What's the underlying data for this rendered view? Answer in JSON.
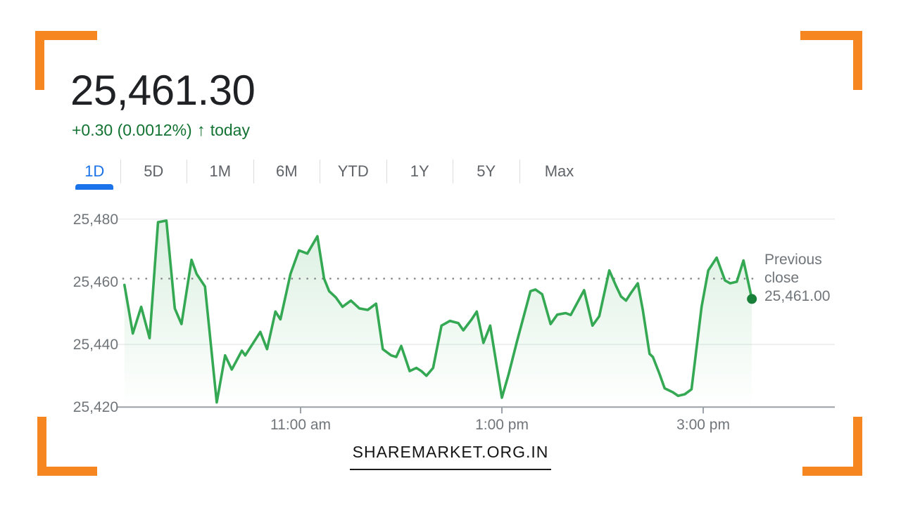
{
  "accent_color": "#f6861f",
  "header": {
    "price": "25,461.30",
    "change": "+0.30 (0.0012%)",
    "up_arrow": "↑",
    "change_suffix": "today",
    "change_color": "#137333",
    "price_color": "#202124"
  },
  "tabs": [
    {
      "label": "1D",
      "active": true
    },
    {
      "label": "5D",
      "active": false
    },
    {
      "label": "1M",
      "active": false
    },
    {
      "label": "6M",
      "active": false
    },
    {
      "label": "YTD",
      "active": false
    },
    {
      "label": "1Y",
      "active": false
    },
    {
      "label": "5Y",
      "active": false
    },
    {
      "label": "Max",
      "active": false
    }
  ],
  "active_tab_color": "#1a73e8",
  "watermark": "SHAREMARKET.ORG.IN",
  "chart_data": {
    "type": "line",
    "title": "",
    "xlabel": "",
    "ylabel": "",
    "session": {
      "open": "9:15 am",
      "close": "3:30 pm"
    },
    "x_unit": "minutes after 9:15 am",
    "ylim": [
      25420,
      25480
    ],
    "grid": true,
    "line_color": "#34a853",
    "dot_color": "#188038",
    "fill_color": "rgba(52,168,83,0.16)",
    "y_ticks": [
      {
        "label": "25,480",
        "value": 25480
      },
      {
        "label": "25,460",
        "value": 25460
      },
      {
        "label": "25,440",
        "value": 25440
      },
      {
        "label": "25,420",
        "value": 25420
      }
    ],
    "x_ticks": [
      {
        "label": "11:00 am",
        "minutes": 105
      },
      {
        "label": "1:00 pm",
        "minutes": 225
      },
      {
        "label": "3:00 pm",
        "minutes": 345
      }
    ],
    "previous_close": {
      "line1": "Previous",
      "line2": "close",
      "value_label": "25,461.00",
      "value": 25461.0
    },
    "last_price": 25461.3,
    "points": [
      [
        0,
        25459
      ],
      [
        5,
        25443.5
      ],
      [
        10,
        25452
      ],
      [
        15,
        25442
      ],
      [
        20,
        25479
      ],
      [
        25,
        25479.5
      ],
      [
        30,
        25451.5
      ],
      [
        34,
        25446.5
      ],
      [
        40,
        25467
      ],
      [
        43,
        25462.5
      ],
      [
        48,
        25458.5
      ],
      [
        55,
        25421.5
      ],
      [
        60,
        25436.5
      ],
      [
        64,
        25432
      ],
      [
        70,
        25438
      ],
      [
        72,
        25436.5
      ],
      [
        81,
        25444
      ],
      [
        85,
        25438.5
      ],
      [
        90,
        25450.5
      ],
      [
        93,
        25448
      ],
      [
        99,
        25462.5
      ],
      [
        104,
        25470
      ],
      [
        109,
        25469
      ],
      [
        115,
        25474.5
      ],
      [
        119,
        25461
      ],
      [
        122,
        25457
      ],
      [
        126,
        25455
      ],
      [
        130,
        25452
      ],
      [
        135,
        25454
      ],
      [
        140,
        25451.5
      ],
      [
        145,
        25451
      ],
      [
        150,
        25453
      ],
      [
        154,
        25438.5
      ],
      [
        159,
        25436.5
      ],
      [
        162,
        25436
      ],
      [
        165,
        25439.5
      ],
      [
        170,
        25431.5
      ],
      [
        174,
        25432.5
      ],
      [
        177,
        25431.5
      ],
      [
        180,
        25430
      ],
      [
        184,
        25432.5
      ],
      [
        189,
        25446
      ],
      [
        194,
        25447.5
      ],
      [
        199,
        25446.8
      ],
      [
        202,
        25444.5
      ],
      [
        207,
        25448
      ],
      [
        210,
        25450.5
      ],
      [
        214,
        25440.5
      ],
      [
        218,
        25446
      ],
      [
        225,
        25423
      ],
      [
        229,
        25430.5
      ],
      [
        234,
        25441
      ],
      [
        242,
        25457
      ],
      [
        245,
        25457.5
      ],
      [
        249,
        25456
      ],
      [
        254,
        25446.5
      ],
      [
        258,
        25449.5
      ],
      [
        263,
        25450
      ],
      [
        266,
        25449.4
      ],
      [
        274,
        25457.3
      ],
      [
        279,
        25446
      ],
      [
        283,
        25449
      ],
      [
        289,
        25463.6
      ],
      [
        293,
        25458.7
      ],
      [
        296,
        25455.3
      ],
      [
        299,
        25454
      ],
      [
        302,
        25456.5
      ],
      [
        306,
        25459.5
      ],
      [
        309,
        25451
      ],
      [
        313,
        25437
      ],
      [
        315,
        25436
      ],
      [
        319,
        25430.5
      ],
      [
        322,
        25426
      ],
      [
        327,
        25424.7
      ],
      [
        330,
        25423.6
      ],
      [
        334,
        25424.1
      ],
      [
        338,
        25425.7
      ],
      [
        344,
        25452
      ],
      [
        348,
        25463.6
      ],
      [
        353,
        25467.7
      ],
      [
        358,
        25460.4
      ],
      [
        361,
        25459.5
      ],
      [
        365,
        25460
      ],
      [
        369,
        25466.8
      ],
      [
        374,
        25454.5
      ]
    ]
  }
}
